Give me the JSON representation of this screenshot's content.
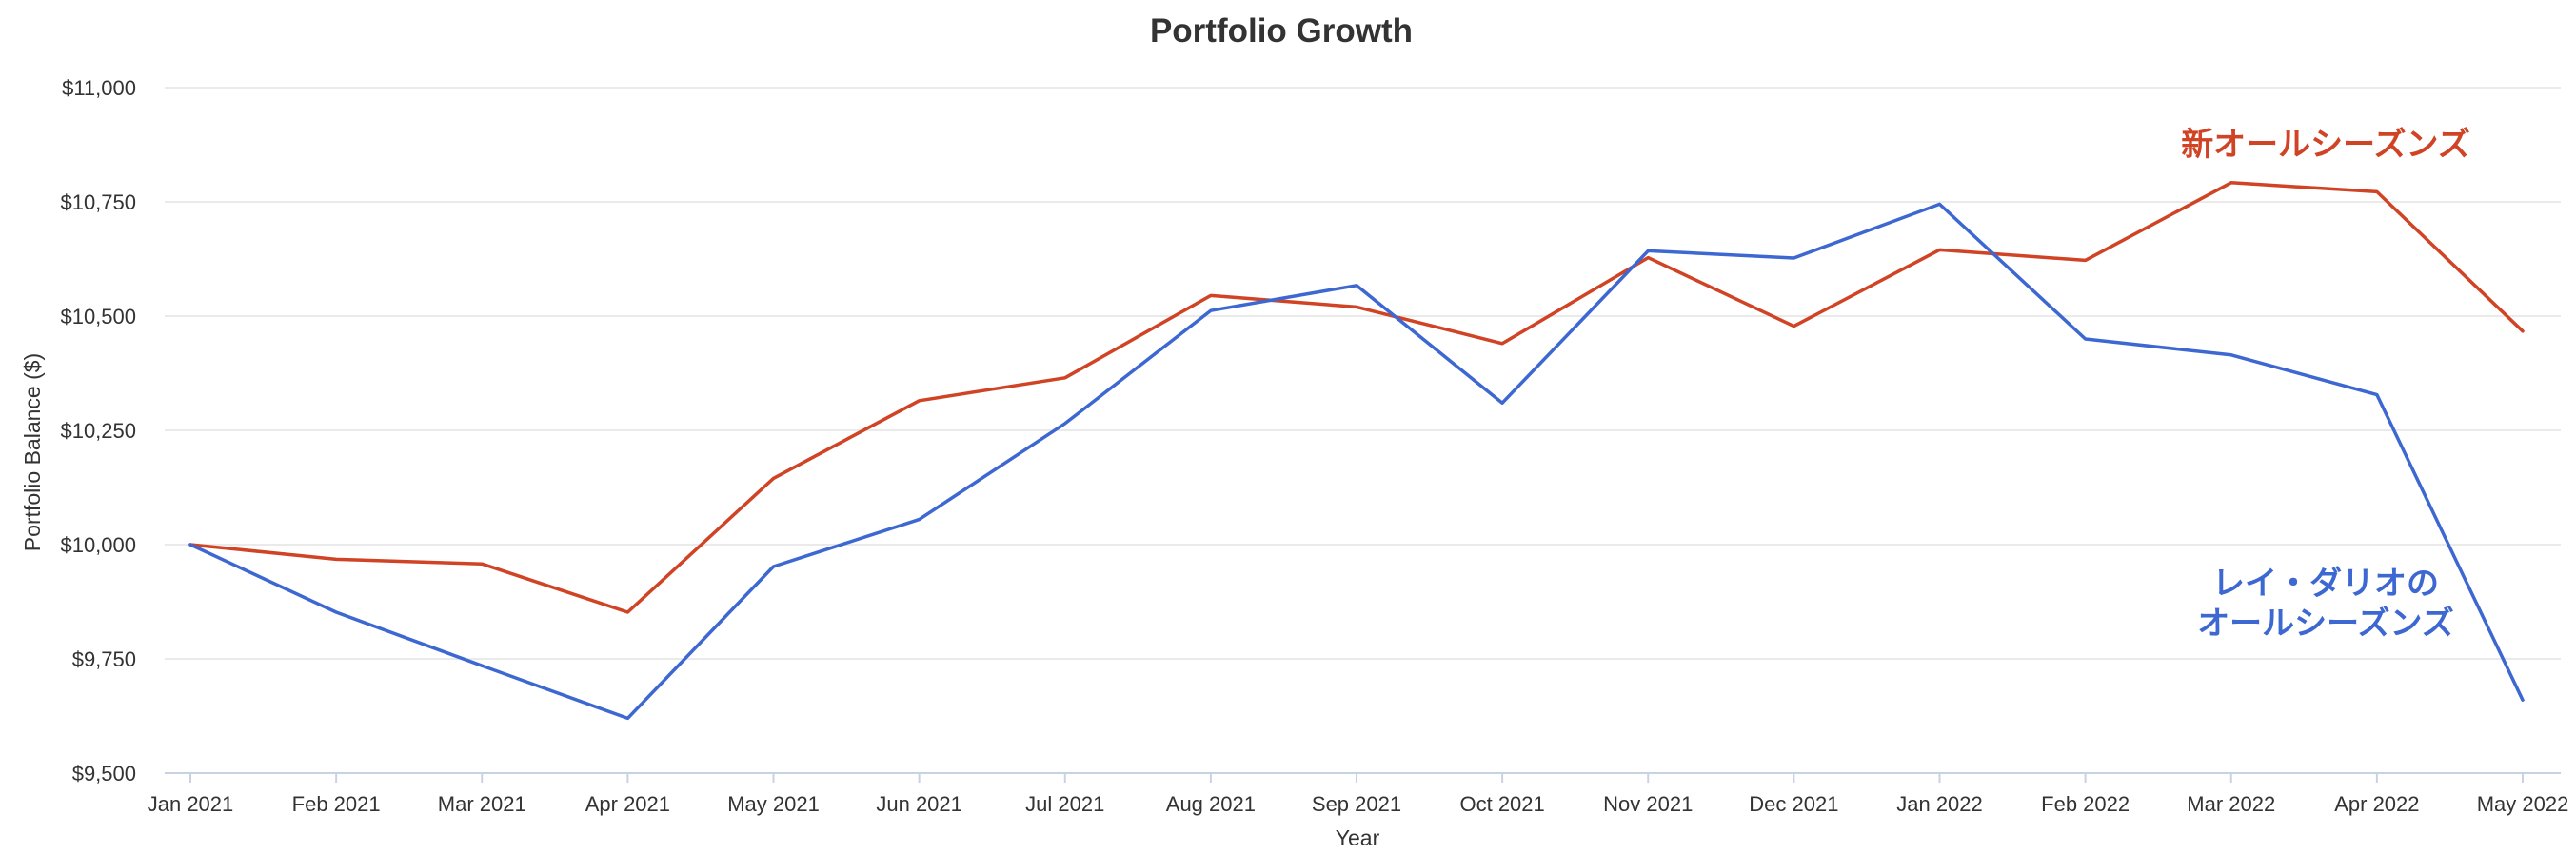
{
  "chart_data": {
    "type": "line",
    "title": "Portfolio Growth",
    "xlabel": "Year",
    "ylabel": "Portfolio Balance ($)",
    "ylim": [
      9500,
      11000
    ],
    "yticks": [
      9500,
      9750,
      10000,
      10250,
      10500,
      10750,
      11000
    ],
    "ytick_labels": [
      "$9,500",
      "$9,750",
      "$10,000",
      "$10,250",
      "$10,500",
      "$10,750",
      "$11,000"
    ],
    "categories": [
      "Jan 2021",
      "Feb 2021",
      "Mar 2021",
      "Apr 2021",
      "May 2021",
      "Jun 2021",
      "Jul 2021",
      "Aug 2021",
      "Sep 2021",
      "Oct 2021",
      "Nov 2021",
      "Dec 2021",
      "Jan 2022",
      "Feb 2022",
      "Mar 2022",
      "Apr 2022",
      "May 2022"
    ],
    "grid": true,
    "series": [
      {
        "name": "新オールシーズンズ",
        "color": "#d04324",
        "values": [
          10000,
          9968,
          9958,
          9852,
          10145,
          10315,
          10365,
          10545,
          10520,
          10440,
          10628,
          10478,
          10645,
          10622,
          10792,
          10772,
          10467
        ]
      },
      {
        "name": "レイ・ダリオのオールシーズンズ",
        "label_lines": [
          "レイ・ダリオの",
          "オールシーズンズ"
        ],
        "color": "#3d67d1",
        "values": [
          10000,
          9852,
          9735,
          9620,
          9952,
          10055,
          10265,
          10512,
          10567,
          10310,
          10643,
          10627,
          10745,
          10450,
          10415,
          10328,
          9660
        ]
      }
    ]
  }
}
